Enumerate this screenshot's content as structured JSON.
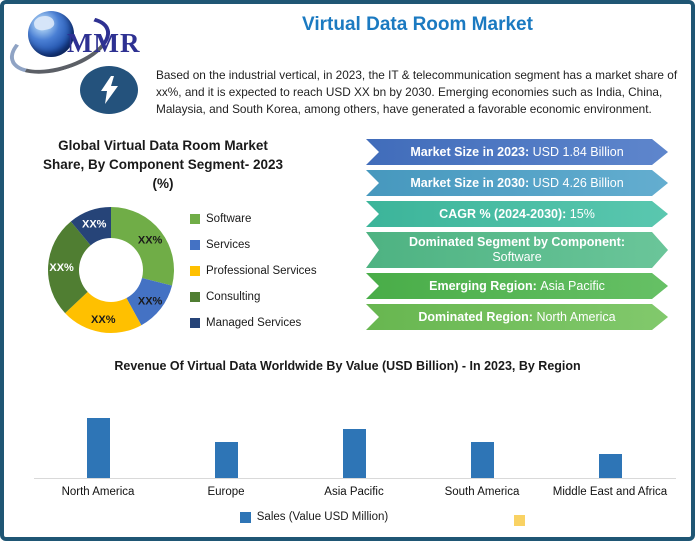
{
  "logo": {
    "text": "MMR"
  },
  "header": {
    "title": "Virtual Data Room Market",
    "title_color": "#1b7ac1",
    "description": "Based on the industrial vertical, in 2023, the IT & telecommunication segment has a market share of xx%, and it is expected to reach USD XX bn by 2030. Emerging economies such as India, China, Malaysia, and South Korea, among others, have generated a favorable economic environment."
  },
  "banners": [
    {
      "label": "Market Size in 2023:",
      "value": "USD 1.84 Billion",
      "color": "#4472c4",
      "stacked": false
    },
    {
      "label": "Market Size in 2030:",
      "value": "USD 4.26 Billion",
      "color": "#4aa0c8",
      "stacked": false
    },
    {
      "label": "CAGR % (2024-2030):",
      "value": "15%",
      "color": "#3fbea2",
      "stacked": false
    },
    {
      "label": "Dominated Segment by Component:",
      "value": "Software",
      "color": "#52bc89",
      "stacked": true
    },
    {
      "label": "Emerging Region:",
      "value": "Asia Pacific",
      "color": "#4db64c",
      "stacked": false
    },
    {
      "label": "Dominated Region:",
      "value": "North America",
      "color": "#6dc054",
      "stacked": false
    }
  ],
  "chart_data": [
    {
      "type": "pie",
      "title": "Global Virtual Data Room Market Share, By Component Segment- 2023 (%)",
      "donut": true,
      "legend_position": "right",
      "categories": [
        "Software",
        "Services",
        "Professional Services",
        "Consulting",
        "Managed Services"
      ],
      "values": [
        29,
        13,
        21,
        26,
        11
      ],
      "values_estimated_from_angles": true,
      "data_labels": [
        "XX%",
        "XX%",
        "XX%",
        "XX%",
        "XX%"
      ],
      "colors": [
        "#70ad47",
        "#4472c4",
        "#ffc000",
        "#507e32",
        "#264478"
      ],
      "label_colors": [
        "#1a1a1a",
        "#1a1a1a",
        "#1a1a1a",
        "#ffffff",
        "#ffffff"
      ]
    },
    {
      "type": "bar",
      "title": "Revenue Of Virtual Data Worldwide By Value (USD Billion) - In 2023, By Region",
      "categories": [
        "North America",
        "Europe",
        "Asia Pacific",
        "South America",
        "Middle East and Africa"
      ],
      "values": [
        0.6,
        0.36,
        0.49,
        0.36,
        0.24
      ],
      "values_estimated": true,
      "ylim": [
        0,
        0.7
      ],
      "grid": false,
      "y_axis_shown": false,
      "bar_color": "#2e75b6",
      "legend": [
        {
          "label": "Sales (Value USD Million)",
          "color": "#2e75b6"
        },
        {
          "label": "",
          "color": "#f9d263"
        }
      ],
      "legend_position": "bottom"
    }
  ]
}
